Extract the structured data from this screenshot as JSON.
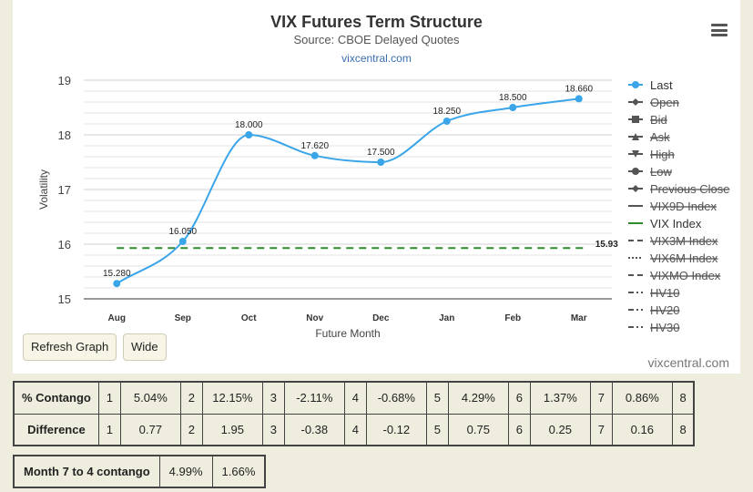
{
  "chart_data": {
    "type": "line",
    "title": "VIX Futures Term Structure",
    "subtitle": "Source: CBOE Delayed Quotes",
    "site_label": "vixcentral.com",
    "xlabel": "Future Month",
    "ylabel": "Volatility",
    "categories": [
      "Aug",
      "Sep",
      "Oct",
      "Nov",
      "Dec",
      "Jan",
      "Feb",
      "Mar"
    ],
    "ylim": [
      15,
      19
    ],
    "yticks": [
      "15",
      "16",
      "17",
      "18",
      "19"
    ],
    "grid": true,
    "series": [
      {
        "name": "Last",
        "color": "#3aa5e8",
        "values": [
          15.28,
          16.05,
          18.0,
          17.62,
          17.5,
          18.25,
          18.5,
          18.66
        ],
        "labels": [
          "15.280",
          "16.050",
          "18.000",
          "17.620",
          "17.500",
          "18.250",
          "18.500",
          "18.660"
        ]
      },
      {
        "name": "VIX Index",
        "color": "#2e8b2e",
        "constant": 15.93,
        "label": "15.93"
      }
    ],
    "legend": {
      "position": "right",
      "items": [
        {
          "name": "Last",
          "symbol": "line-dot",
          "color": "#3aa5e8",
          "hidden": false
        },
        {
          "name": "Open",
          "symbol": "line-diamond",
          "color": "#555",
          "hidden": true
        },
        {
          "name": "Bid",
          "symbol": "line-square",
          "color": "#555",
          "hidden": true
        },
        {
          "name": "Ask",
          "symbol": "line-triangle",
          "color": "#555",
          "hidden": true
        },
        {
          "name": "High",
          "symbol": "line-triangle-down",
          "color": "#555",
          "hidden": true
        },
        {
          "name": "Low",
          "symbol": "line-dot",
          "color": "#555",
          "hidden": true
        },
        {
          "name": "Previous Close",
          "symbol": "line-diamond",
          "color": "#555",
          "hidden": true
        },
        {
          "name": "VIX9D Index",
          "symbol": "solid",
          "color": "#555",
          "hidden": true
        },
        {
          "name": "VIX Index",
          "symbol": "solid",
          "color": "#2e8b2e",
          "hidden": false
        },
        {
          "name": "VIX3M Index",
          "symbol": "dash",
          "color": "#555",
          "hidden": true
        },
        {
          "name": "VIX6M Index",
          "symbol": "dot",
          "color": "#555",
          "hidden": true
        },
        {
          "name": "VIXMO Index",
          "symbol": "dash",
          "color": "#555",
          "hidden": true
        },
        {
          "name": "HV10",
          "symbol": "dash-dot",
          "color": "#555",
          "hidden": true
        },
        {
          "name": "HV20",
          "symbol": "dash-dot",
          "color": "#555",
          "hidden": true
        },
        {
          "name": "HV30",
          "symbol": "dash-dot",
          "color": "#555",
          "hidden": true
        }
      ]
    }
  },
  "controls": {
    "refresh_label": "Refresh Graph",
    "wide_label": "Wide",
    "credit": "vixcentral.com"
  },
  "stats_table": {
    "rows": [
      {
        "label": "% Contango",
        "cells": [
          [
            "1",
            "5.04%"
          ],
          [
            "2",
            "12.15%"
          ],
          [
            "3",
            "-2.11%"
          ],
          [
            "4",
            "-0.68%"
          ],
          [
            "5",
            "4.29%"
          ],
          [
            "6",
            "1.37%"
          ],
          [
            "7",
            "0.86%"
          ],
          [
            "8",
            ""
          ]
        ]
      },
      {
        "label": "Difference",
        "cells": [
          [
            "1",
            "0.77"
          ],
          [
            "2",
            "1.95"
          ],
          [
            "3",
            "-0.38"
          ],
          [
            "4",
            "-0.12"
          ],
          [
            "5",
            "0.75"
          ],
          [
            "6",
            "0.25"
          ],
          [
            "7",
            "0.16"
          ],
          [
            "8",
            ""
          ]
        ]
      }
    ]
  },
  "month74": {
    "label": "Month 7 to 4 contango",
    "values": [
      "4.99%",
      "1.66%"
    ]
  }
}
